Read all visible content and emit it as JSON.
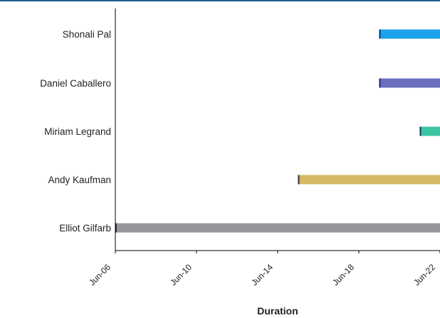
{
  "chart_data": {
    "type": "gantt",
    "xlabel": "Duration",
    "ylabel": "",
    "x_tick_labels": [
      "Jun-06",
      "Jun-10",
      "Jun-14",
      "Jun-18",
      "Jun-22"
    ],
    "xlim": [
      "2020-06-06",
      "2020-06-22"
    ],
    "grid": false,
    "legend": "none",
    "rows": [
      {
        "label": "Shonali Pal",
        "start": "2020-06-19",
        "end": "2020-06-22",
        "color": "#1aa3e8"
      },
      {
        "label": "Daniel Caballero",
        "start": "2020-06-19",
        "end": "2020-06-22",
        "color": "#6b6fbf"
      },
      {
        "label": "Miriam Legrand",
        "start": "2020-06-21",
        "end": "2020-06-22",
        "color": "#3cc4a3"
      },
      {
        "label": "Andy Kaufman",
        "start": "2020-06-15",
        "end": "2020-06-22",
        "color": "#d6b865"
      },
      {
        "label": "Elliot Gilfarb",
        "start": "2020-06-06",
        "end": "2020-06-22",
        "color": "#97979b"
      }
    ]
  }
}
